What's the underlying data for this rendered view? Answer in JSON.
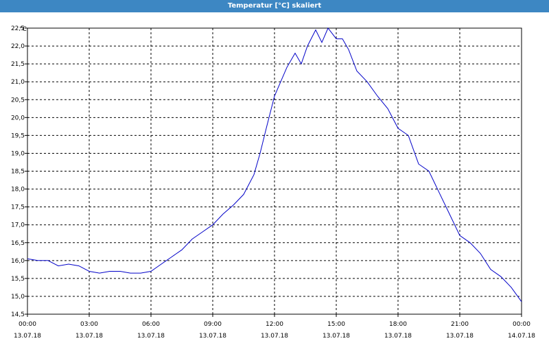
{
  "window": {
    "title": "Temperatur [°C] skaliert"
  },
  "colors": {
    "titlebar": "#3d87c3",
    "line": "#0000c8",
    "grid": "#000000"
  },
  "chart_data": {
    "type": "line",
    "title": "Temperatur [°C] skaliert",
    "ylabel": "°C",
    "xlabel": "",
    "ylim": [
      14.5,
      22.5
    ],
    "xlim": [
      0,
      24
    ],
    "grid": true,
    "y_ticks": [
      "14,5",
      "15,0",
      "15,5",
      "16,0",
      "16,5",
      "17,0",
      "17,5",
      "18,0",
      "18,5",
      "19,0",
      "19,5",
      "20,0",
      "20,5",
      "21,0",
      "21,5",
      "22,0",
      "22,5"
    ],
    "x_ticks": [
      {
        "time": "00:00",
        "date": "13.07.18"
      },
      {
        "time": "03:00",
        "date": "13.07.18"
      },
      {
        "time": "06:00",
        "date": "13.07.18"
      },
      {
        "time": "09:00",
        "date": "13.07.18"
      },
      {
        "time": "12:00",
        "date": "13.07.18"
      },
      {
        "time": "15:00",
        "date": "13.07.18"
      },
      {
        "time": "18:00",
        "date": "13.07.18"
      },
      {
        "time": "21:00",
        "date": "13.07.18"
      },
      {
        "time": "00:00",
        "date": "14.07.18"
      }
    ],
    "series": [
      {
        "x": [
          0,
          0.5,
          1,
          1.5,
          2,
          2.5,
          3,
          3.5,
          4,
          4.5,
          5,
          5.5,
          6,
          6.5,
          7,
          7.5,
          8,
          8.5,
          9,
          9.5,
          10,
          10.5,
          11,
          11.3,
          11.6,
          12,
          12.3,
          12.6,
          13,
          13.3,
          13.6,
          14,
          14.3,
          14.6,
          15,
          15.3,
          15.6,
          16,
          16.5,
          17,
          17.5,
          18,
          18.5,
          19,
          19.5,
          20,
          20.5,
          21,
          21.5,
          22,
          22.5,
          23,
          23.5,
          24
        ],
        "y": [
          16.05,
          16.0,
          16.0,
          15.85,
          15.9,
          15.85,
          15.7,
          15.65,
          15.7,
          15.7,
          15.65,
          15.65,
          15.7,
          15.9,
          16.1,
          16.3,
          16.6,
          16.8,
          17.0,
          17.3,
          17.55,
          17.85,
          18.4,
          19.0,
          19.7,
          20.6,
          21.0,
          21.4,
          21.8,
          21.5,
          22.0,
          22.45,
          22.1,
          22.5,
          22.2,
          22.2,
          21.9,
          21.3,
          21.0,
          20.6,
          20.25,
          19.7,
          19.5,
          18.7,
          18.5,
          17.9,
          17.3,
          16.7,
          16.5,
          16.2,
          15.75,
          15.55,
          15.25,
          14.85
        ]
      }
    ]
  }
}
